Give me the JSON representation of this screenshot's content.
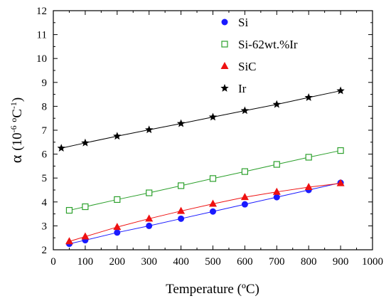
{
  "chart_data": {
    "type": "scatter",
    "xlabel": "Temperature (ºC)",
    "ylabel": {
      "symbol": "α",
      "units_prefix": "(10",
      "units_exp1": "-6",
      "units_mid": " ºC",
      "units_exp2": "-1",
      "units_suffix": ")"
    },
    "xlim": [
      0,
      1000
    ],
    "ylim": [
      2,
      12
    ],
    "xticks": [
      "0",
      "100",
      "200",
      "300",
      "400",
      "500",
      "600",
      "700",
      "800",
      "900",
      "1000"
    ],
    "yticks": [
      "2",
      "3",
      "4",
      "5",
      "6",
      "7",
      "8",
      "9",
      "10",
      "11",
      "12"
    ],
    "grid": false,
    "legend_position": "top-right",
    "series": [
      {
        "name": "Si",
        "marker": "filled-circle",
        "color": "#1a1aff",
        "line": true,
        "x": [
          50,
          100,
          200,
          300,
          400,
          500,
          600,
          700,
          800,
          900
        ],
        "y": [
          2.25,
          2.4,
          2.72,
          3.0,
          3.3,
          3.6,
          3.9,
          4.2,
          4.5,
          4.8
        ]
      },
      {
        "name": "Si-62wt.%Ir",
        "marker": "open-square",
        "color": "#2ca02c",
        "line": true,
        "x": [
          50,
          100,
          200,
          300,
          400,
          500,
          600,
          700,
          800,
          900
        ],
        "y": [
          3.65,
          3.8,
          4.1,
          4.38,
          4.68,
          4.98,
          5.27,
          5.57,
          5.87,
          6.15
        ]
      },
      {
        "name": "SiC",
        "marker": "filled-triangle",
        "color": "#ee1111",
        "line": true,
        "x": [
          50,
          100,
          200,
          300,
          400,
          500,
          600,
          700,
          800,
          900
        ],
        "y": [
          2.35,
          2.55,
          2.95,
          3.3,
          3.62,
          3.92,
          4.2,
          4.42,
          4.62,
          4.78
        ]
      },
      {
        "name": "Ir",
        "marker": "filled-star",
        "color": "#000000",
        "line": true,
        "x": [
          25,
          100,
          200,
          300,
          400,
          500,
          600,
          700,
          800,
          900
        ],
        "y": [
          6.25,
          6.47,
          6.75,
          7.02,
          7.28,
          7.55,
          7.82,
          8.08,
          8.37,
          8.65
        ]
      }
    ]
  }
}
